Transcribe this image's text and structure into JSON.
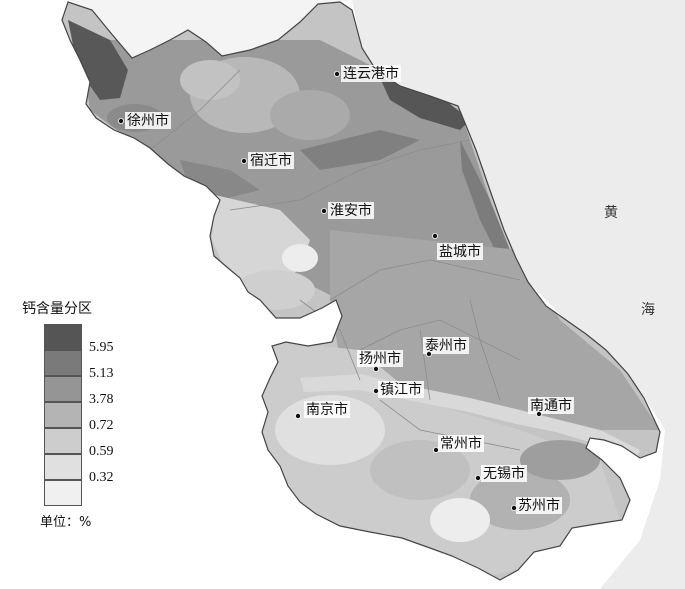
{
  "sea_label": [
    "黄",
    "海"
  ],
  "legend": {
    "title": "钙含量分区",
    "classes": [
      {
        "value": "5.95",
        "color": "#555555"
      },
      {
        "value": "5.13",
        "color": "#7a7a7a"
      },
      {
        "value": "3.78",
        "color": "#959595"
      },
      {
        "value": "0.72",
        "color": "#b4b4b4"
      },
      {
        "value": "0.59",
        "color": "#cdcdcd"
      },
      {
        "value": "0.32",
        "color": "#e0e0e0"
      },
      {
        "value": "",
        "color": "#f0f0f0"
      }
    ],
    "unit": "单位：%"
  },
  "cities": [
    {
      "name": "连云港市"
    },
    {
      "name": "徐州市"
    },
    {
      "name": "宿迁市"
    },
    {
      "name": "淮安市"
    },
    {
      "name": "盐城市"
    },
    {
      "name": "扬州市"
    },
    {
      "name": "泰州市"
    },
    {
      "name": "镇江市"
    },
    {
      "name": "南京市"
    },
    {
      "name": "南通市"
    },
    {
      "name": "常州市"
    },
    {
      "name": "无锡市"
    },
    {
      "name": "苏州市"
    }
  ]
}
